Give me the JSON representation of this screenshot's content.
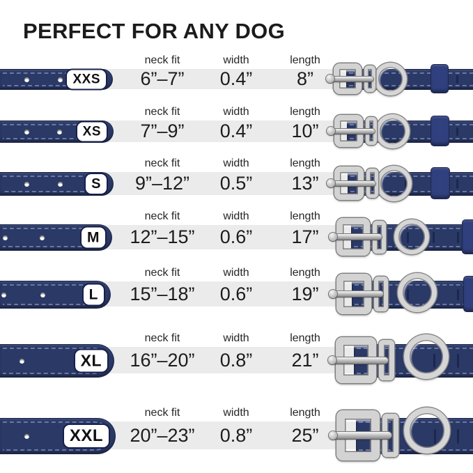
{
  "title": "PERFECT FOR ANY DOG",
  "columns": {
    "neck_fit": "neck fit",
    "width": "width",
    "length": "length"
  },
  "rows": [
    {
      "size": "XXS",
      "neck_fit": "6”–7”",
      "width": "0.4”",
      "length": "8”"
    },
    {
      "size": "XS",
      "neck_fit": "7”–9”",
      "width": "0.4”",
      "length": "10”"
    },
    {
      "size": "S",
      "neck_fit": "9”–12”",
      "width": "0.5”",
      "length": "13”"
    },
    {
      "size": "M",
      "neck_fit": "12”–15”",
      "width": "0.6”",
      "length": "17”"
    },
    {
      "size": "L",
      "neck_fit": "15”–18”",
      "width": "0.6”",
      "length": "19”"
    },
    {
      "size": "XL",
      "neck_fit": "16”–20”",
      "width": "0.8”",
      "length": "21”"
    },
    {
      "size": "XXL",
      "neck_fit": "20”–23”",
      "width": "0.8”",
      "length": "25”"
    }
  ],
  "chart_data": {
    "type": "table",
    "title": "PERFECT FOR ANY DOG",
    "categories": [
      "XXS",
      "XS",
      "S",
      "M",
      "L",
      "XL",
      "XXL"
    ],
    "series": [
      {
        "name": "neck fit",
        "values": [
          "6”–7”",
          "7”–9”",
          "9”–12”",
          "12”–15”",
          "15”–18”",
          "16”–20”",
          "20”–23”"
        ]
      },
      {
        "name": "width",
        "values": [
          "0.4”",
          "0.4”",
          "0.5”",
          "0.6”",
          "0.6”",
          "0.8”",
          "0.8”"
        ]
      },
      {
        "name": "length",
        "values": [
          "8”",
          "10”",
          "13”",
          "17”",
          "19”",
          "21”",
          "25”"
        ]
      }
    ]
  },
  "colors": {
    "collar_navy": "#2b3966",
    "keeper_navy": "#30407e",
    "band_gray": "#ebebeb",
    "metal_silver": "#d4d4d4",
    "text": "#1c1c1e",
    "background": "#ffffff"
  }
}
